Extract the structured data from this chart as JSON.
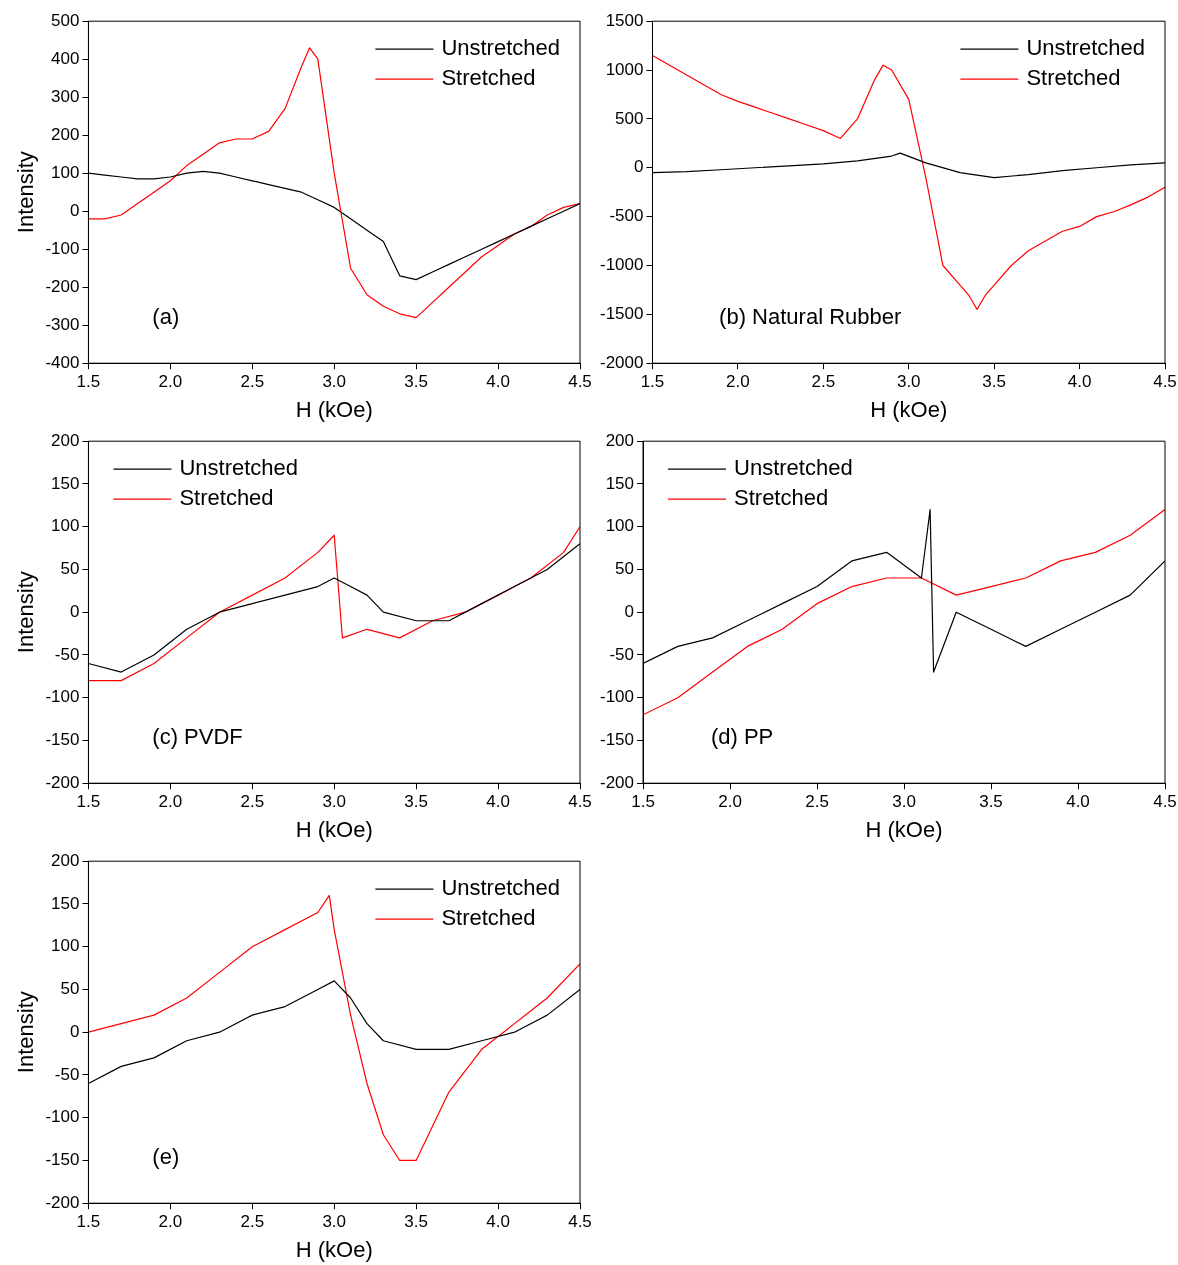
{
  "chart_data": [
    {
      "type": "line",
      "annotations": [
        "(a)"
      ],
      "xlabel": "H (kOe)",
      "ylabel": "Intensity",
      "xlim": [
        1.5,
        4.5
      ],
      "xticks": [
        1.5,
        {
          "value": 2,
          "label": "2.0"
        },
        2.5,
        {
          "value": 3,
          "label": "3.0"
        },
        3.5,
        {
          "value": 4,
          "label": "4.0"
        },
        4.5
      ],
      "ylim": [
        -400,
        500
      ],
      "yticks": [
        -400,
        -300,
        -200,
        -100,
        0,
        100,
        200,
        300,
        400,
        500
      ],
      "grid": false,
      "legend": "top right",
      "marker": "none",
      "line_style": "solid",
      "series": [
        {
          "name": "Unstretched",
          "color": "#000000",
          "x": [
            1.5,
            1.6,
            1.7,
            1.8,
            1.9,
            2.0,
            2.1,
            2.2,
            2.3,
            2.4,
            2.5,
            2.6,
            2.7,
            2.8,
            2.9,
            3.0,
            3.1,
            3.2,
            3.3,
            3.4,
            3.5,
            3.6,
            3.7,
            3.8,
            3.9,
            4.0,
            4.1,
            4.2,
            4.3,
            4.4,
            4.5
          ],
          "values": [
            100,
            95,
            90,
            85,
            85,
            90,
            100,
            105,
            100,
            90,
            80,
            70,
            60,
            50,
            30,
            10,
            -20,
            -50,
            -80,
            -170,
            -180,
            -160,
            -140,
            -120,
            -100,
            -80,
            -60,
            -40,
            -20,
            0,
            20
          ]
        },
        {
          "name": "Stretched",
          "color": "#ff0000",
          "x": [
            1.5,
            1.6,
            1.7,
            1.8,
            1.9,
            2.0,
            2.1,
            2.2,
            2.3,
            2.4,
            2.5,
            2.6,
            2.7,
            2.8,
            2.85,
            2.9,
            3.0,
            3.1,
            3.2,
            3.3,
            3.4,
            3.5,
            3.6,
            3.7,
            3.8,
            3.9,
            4.0,
            4.1,
            4.2,
            4.3,
            4.4,
            4.5
          ],
          "values": [
            -20,
            -20,
            -10,
            20,
            50,
            80,
            120,
            150,
            180,
            190,
            190,
            210,
            270,
            380,
            430,
            400,
            100,
            -150,
            -220,
            -250,
            -270,
            -280,
            -240,
            -200,
            -160,
            -120,
            -90,
            -60,
            -40,
            -10,
            10,
            20
          ]
        }
      ]
    },
    {
      "type": "line",
      "annotations": [
        "(b) Natural Rubber"
      ],
      "xlabel": "H (kOe)",
      "xlim": [
        1.5,
        4.5
      ],
      "xticks": [
        1.5,
        {
          "value": 2,
          "label": "2.0"
        },
        2.5,
        {
          "value": 3,
          "label": "3.0"
        },
        3.5,
        {
          "value": 4,
          "label": "4.0"
        },
        4.5
      ],
      "ylim": [
        -2000,
        1500
      ],
      "yticks": [
        -2000,
        -1500,
        -1000,
        -500,
        0,
        500,
        1000,
        1500
      ],
      "grid": false,
      "legend": "top right",
      "marker": "none",
      "line_style": "solid",
      "series": [
        {
          "name": "Unstretched",
          "color": "#000000",
          "x": [
            1.5,
            1.7,
            1.9,
            2.1,
            2.3,
            2.5,
            2.7,
            2.9,
            2.95,
            3.1,
            3.3,
            3.5,
            3.7,
            3.9,
            4.1,
            4.3,
            4.5
          ],
          "values": [
            -50,
            -40,
            -20,
            0,
            20,
            40,
            70,
            120,
            150,
            50,
            -50,
            -100,
            -70,
            -30,
            0,
            30,
            50
          ]
        },
        {
          "name": "Stretched",
          "color": "#ff0000",
          "x": [
            1.5,
            1.6,
            1.7,
            1.8,
            1.9,
            2.0,
            2.1,
            2.2,
            2.3,
            2.4,
            2.5,
            2.6,
            2.7,
            2.8,
            2.85,
            2.9,
            3.0,
            3.1,
            3.2,
            3.3,
            3.35,
            3.4,
            3.45,
            3.5,
            3.6,
            3.7,
            3.8,
            3.9,
            4.0,
            4.1,
            4.2,
            4.3,
            4.4,
            4.5
          ],
          "values": [
            1150,
            1050,
            950,
            850,
            750,
            680,
            620,
            560,
            500,
            440,
            380,
            300,
            500,
            900,
            1050,
            1000,
            700,
            -100,
            -1000,
            -1200,
            -1300,
            -1450,
            -1300,
            -1200,
            -1000,
            -850,
            -750,
            -650,
            -600,
            -500,
            -450,
            -380,
            -300,
            -200
          ]
        }
      ]
    },
    {
      "type": "line",
      "annotations": [
        "(c) PVDF"
      ],
      "xlabel": "H (kOe)",
      "ylabel": "Intensity",
      "xlim": [
        1.5,
        4.5
      ],
      "xticks": [
        1.5,
        {
          "value": 2,
          "label": "2.0"
        },
        2.5,
        {
          "value": 3,
          "label": "3.0"
        },
        3.5,
        {
          "value": 4,
          "label": "4.0"
        },
        4.5
      ],
      "ylim": [
        -200,
        200
      ],
      "yticks": [
        -200,
        -150,
        -100,
        -50,
        0,
        50,
        100,
        150,
        200
      ],
      "grid": false,
      "legend": "top left",
      "marker": "none",
      "line_style": "solid",
      "series": [
        {
          "name": "Unstretched",
          "color": "#000000",
          "x": [
            1.5,
            1.7,
            1.9,
            2.1,
            2.3,
            2.5,
            2.7,
            2.9,
            3.0,
            3.1,
            3.2,
            3.3,
            3.5,
            3.7,
            3.9,
            4.1,
            4.3,
            4.5
          ],
          "values": [
            -60,
            -70,
            -50,
            -20,
            0,
            10,
            20,
            30,
            40,
            30,
            20,
            0,
            -10,
            -10,
            10,
            30,
            50,
            80
          ]
        },
        {
          "name": "Stretched",
          "color": "#ff0000",
          "x": [
            1.5,
            1.7,
            1.9,
            2.1,
            2.3,
            2.5,
            2.7,
            2.9,
            3.0,
            3.05,
            3.2,
            3.4,
            3.6,
            3.8,
            4.0,
            4.2,
            4.4,
            4.5
          ],
          "values": [
            -80,
            -80,
            -60,
            -30,
            0,
            20,
            40,
            70,
            90,
            -30,
            -20,
            -30,
            -10,
            0,
            20,
            40,
            70,
            100
          ]
        }
      ]
    },
    {
      "type": "line",
      "annotations": [
        "(d) PP"
      ],
      "xlabel": "H (kOe)",
      "xlim": [
        1.5,
        4.5
      ],
      "xticks": [
        1.5,
        {
          "value": 2,
          "label": "2.0"
        },
        2.5,
        {
          "value": 3,
          "label": "3.0"
        },
        3.5,
        {
          "value": 4,
          "label": "4.0"
        },
        4.5
      ],
      "ylim": [
        -200,
        200
      ],
      "yticks": [
        -200,
        -150,
        -100,
        -50,
        0,
        50,
        100,
        150,
        200
      ],
      "grid": false,
      "legend": "top left",
      "marker": "none",
      "line_style": "solid",
      "series": [
        {
          "name": "Unstretched",
          "color": "#000000",
          "x": [
            1.5,
            1.7,
            1.9,
            2.1,
            2.3,
            2.5,
            2.7,
            2.9,
            3.1,
            3.15,
            3.17,
            3.3,
            3.5,
            3.7,
            3.9,
            4.1,
            4.3,
            4.5
          ],
          "values": [
            -60,
            -40,
            -30,
            -10,
            10,
            30,
            60,
            70,
            40,
            120,
            -70,
            0,
            -20,
            -40,
            -20,
            0,
            20,
            60
          ]
        },
        {
          "name": "Stretched",
          "color": "#ff0000",
          "x": [
            1.5,
            1.7,
            1.9,
            2.1,
            2.3,
            2.5,
            2.7,
            2.9,
            3.1,
            3.3,
            3.5,
            3.7,
            3.9,
            4.1,
            4.3,
            4.5
          ],
          "values": [
            -120,
            -100,
            -70,
            -40,
            -20,
            10,
            30,
            40,
            40,
            20,
            30,
            40,
            60,
            70,
            90,
            120
          ]
        }
      ]
    },
    {
      "type": "line",
      "annotations": [
        "(e)"
      ],
      "xlabel": "H (kOe)",
      "ylabel": "Intensity",
      "xlim": [
        1.5,
        4.5
      ],
      "xticks": [
        1.5,
        {
          "value": 2,
          "label": "2.0"
        },
        2.5,
        {
          "value": 3,
          "label": "3.0"
        },
        3.5,
        {
          "value": 4,
          "label": "4.0"
        },
        4.5
      ],
      "ylim": [
        -200,
        200
      ],
      "yticks": [
        -200,
        -150,
        -100,
        -50,
        0,
        50,
        100,
        150,
        200
      ],
      "grid": false,
      "legend": "top right",
      "marker": "none",
      "line_style": "solid",
      "series": [
        {
          "name": "Unstretched",
          "color": "#000000",
          "x": [
            1.5,
            1.7,
            1.9,
            2.1,
            2.3,
            2.5,
            2.7,
            2.9,
            3.0,
            3.1,
            3.2,
            3.3,
            3.5,
            3.7,
            3.9,
            4.1,
            4.3,
            4.5
          ],
          "values": [
            -60,
            -40,
            -30,
            -10,
            0,
            20,
            30,
            50,
            60,
            40,
            10,
            -10,
            -20,
            -20,
            -10,
            0,
            20,
            50
          ]
        },
        {
          "name": "Stretched",
          "color": "#ff0000",
          "x": [
            1.5,
            1.7,
            1.9,
            2.1,
            2.3,
            2.5,
            2.7,
            2.9,
            2.97,
            3.0,
            3.1,
            3.2,
            3.3,
            3.4,
            3.5,
            3.6,
            3.7,
            3.9,
            4.1,
            4.3,
            4.5
          ],
          "values": [
            0,
            10,
            20,
            40,
            70,
            100,
            120,
            140,
            160,
            120,
            20,
            -60,
            -120,
            -150,
            -150,
            -110,
            -70,
            -20,
            10,
            40,
            80
          ]
        }
      ]
    }
  ]
}
